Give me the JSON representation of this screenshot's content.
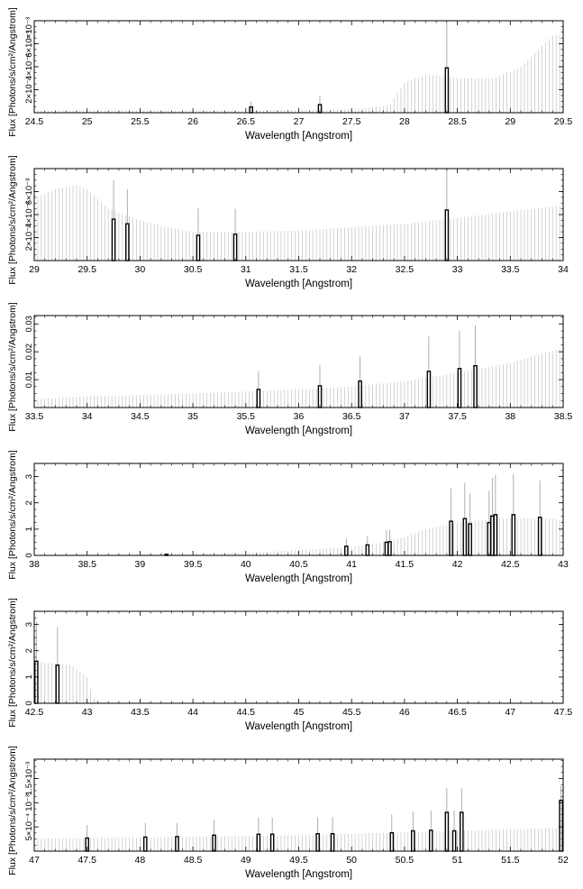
{
  "chart_data": [
    {
      "type": "bar",
      "xlabel": "Wavelength [Angstrom]",
      "ylabel": "Flux [Photons/s/cm²/Angstrom]",
      "xlim": [
        24.5,
        29.5
      ],
      "ylim": [
        0,
        0.0008
      ],
      "xticks": [
        24.5,
        25,
        25.5,
        26,
        26.5,
        27,
        27.5,
        28,
        28.5,
        29,
        29.5
      ],
      "xtick_labels": [
        "24.5",
        "25",
        "25.5",
        "26",
        "26.5",
        "27",
        "27.5",
        "28",
        "28.5",
        "29",
        "29.5"
      ],
      "yticks": [
        0.0002,
        0.0004,
        0.0006
      ],
      "ytick_labels": [
        "2×10⁻⁴",
        "4×10⁻⁴",
        "6×10⁻⁴"
      ],
      "y_exponent_label": "×10⁻³",
      "envelope": [
        [
          24.5,
          2e-05
        ],
        [
          25.5,
          2e-05
        ],
        [
          26.5,
          2e-05
        ],
        [
          27.5,
          3e-05
        ],
        [
          27.85,
          6e-05
        ],
        [
          28.0,
          0.00026
        ],
        [
          28.2,
          0.00033
        ],
        [
          28.35,
          0.00032
        ],
        [
          28.5,
          0.0003
        ],
        [
          28.85,
          0.0003
        ],
        [
          29.1,
          0.0004
        ],
        [
          29.4,
          0.00067
        ],
        [
          29.5,
          0.00068
        ]
      ],
      "bars": [
        {
          "x": 26.55,
          "value": 5e-05,
          "err": 5e-05
        },
        {
          "x": 27.2,
          "value": 7e-05,
          "err": 8e-05
        },
        {
          "x": 28.4,
          "value": 0.00039,
          "err": 0.00039
        }
      ]
    },
    {
      "type": "bar",
      "xlabel": "Wavelength [Angstrom]",
      "ylabel": "Flux [Photons/s/cm²/Angstrom]",
      "xlim": [
        29,
        34
      ],
      "ylim": [
        0,
        0.008
      ],
      "xticks": [
        29,
        29.5,
        30,
        30.5,
        31,
        31.5,
        32,
        32.5,
        33,
        33.5,
        34
      ],
      "xtick_labels": [
        "29",
        "29.5",
        "30",
        "30.5",
        "31",
        "31.5",
        "32",
        "32.5",
        "33",
        "33.5",
        "34"
      ],
      "yticks": [
        0.002,
        0.004,
        0.006
      ],
      "ytick_labels": [
        "2×10⁻³",
        "4×10⁻³",
        "6×10⁻³"
      ],
      "y_exponent_label": "",
      "envelope": [
        [
          29.0,
          0.0054
        ],
        [
          29.2,
          0.0062
        ],
        [
          29.4,
          0.0066
        ],
        [
          29.5,
          0.0062
        ],
        [
          29.7,
          0.0045
        ],
        [
          30.0,
          0.0035
        ],
        [
          30.3,
          0.0028
        ],
        [
          30.5,
          0.0025
        ],
        [
          31.0,
          0.0025
        ],
        [
          31.5,
          0.0026
        ],
        [
          32.0,
          0.0029
        ],
        [
          32.5,
          0.0032
        ],
        [
          33.0,
          0.0037
        ],
        [
          33.5,
          0.0043
        ],
        [
          34.0,
          0.0048
        ]
      ],
      "bars": [
        {
          "x": 29.75,
          "value": 0.0036,
          "err": 0.0034
        },
        {
          "x": 29.88,
          "value": 0.0032,
          "err": 0.003
        },
        {
          "x": 30.55,
          "value": 0.0022,
          "err": 0.0024
        },
        {
          "x": 30.9,
          "value": 0.0023,
          "err": 0.0022
        },
        {
          "x": 32.9,
          "value": 0.0044,
          "err": 0.0041
        }
      ]
    },
    {
      "type": "bar",
      "xlabel": "Wavelength [Angstrom]",
      "ylabel": "Flux [Photons/s/cm²/Angstrom]",
      "xlim": [
        33.5,
        38.5
      ],
      "ylim": [
        0,
        0.033
      ],
      "xticks": [
        33.5,
        34,
        34.5,
        35,
        35.5,
        36,
        36.5,
        37,
        37.5,
        38,
        38.5
      ],
      "xtick_labels": [
        "33.5",
        "34",
        "34.5",
        "35",
        "35.5",
        "36",
        "36.5",
        "37",
        "37.5",
        "38",
        "38.5"
      ],
      "yticks": [
        0.01,
        0.02,
        0.03
      ],
      "ytick_labels": [
        "0.01",
        "0.02",
        "0.03"
      ],
      "y_exponent_label": "",
      "envelope": [
        [
          33.5,
          0.003
        ],
        [
          34.0,
          0.004
        ],
        [
          34.5,
          0.0045
        ],
        [
          35.0,
          0.005
        ],
        [
          35.5,
          0.0058
        ],
        [
          36.0,
          0.0065
        ],
        [
          36.5,
          0.0075
        ],
        [
          37.0,
          0.0095
        ],
        [
          37.5,
          0.0125
        ],
        [
          38.0,
          0.016
        ],
        [
          38.5,
          0.0215
        ]
      ],
      "bars": [
        {
          "x": 35.62,
          "value": 0.0065,
          "err": 0.0065
        },
        {
          "x": 36.2,
          "value": 0.0078,
          "err": 0.0075
        },
        {
          "x": 36.58,
          "value": 0.0095,
          "err": 0.009
        },
        {
          "x": 37.23,
          "value": 0.013,
          "err": 0.0125
        },
        {
          "x": 37.52,
          "value": 0.014,
          "err": 0.0135
        },
        {
          "x": 37.67,
          "value": 0.015,
          "err": 0.0145
        }
      ]
    },
    {
      "type": "bar",
      "xlabel": "Wavelength [Angstrom]",
      "ylabel": "Flux [Photons/s/cm²/Angstrom]",
      "xlim": [
        38,
        43
      ],
      "ylim": [
        0,
        3.5
      ],
      "xticks": [
        38,
        38.5,
        39,
        39.5,
        40,
        40.5,
        41,
        41.5,
        42,
        42.5,
        43
      ],
      "xtick_labels": [
        "38",
        "38.5",
        "39",
        "39.5",
        "40",
        "40.5",
        "41",
        "41.5",
        "42",
        "42.5",
        "43"
      ],
      "yticks": [
        0,
        1,
        2,
        3
      ],
      "ytick_labels": [
        "0",
        "1",
        "2",
        "3"
      ],
      "y_exponent_label": "",
      "envelope": [
        [
          38.0,
          0.03
        ],
        [
          39.0,
          0.04
        ],
        [
          40.0,
          0.1
        ],
        [
          40.5,
          0.2
        ],
        [
          41.0,
          0.32
        ],
        [
          41.3,
          0.5
        ],
        [
          41.5,
          0.7
        ],
        [
          41.7,
          1.0
        ],
        [
          42.0,
          1.25
        ],
        [
          42.3,
          1.38
        ],
        [
          42.6,
          1.42
        ],
        [
          42.9,
          1.4
        ],
        [
          43.0,
          1.3
        ]
      ],
      "bars": [
        {
          "x": 39.25,
          "value": 0.04,
          "err": 0.03
        },
        {
          "x": 40.95,
          "value": 0.35,
          "err": 0.3
        },
        {
          "x": 41.15,
          "value": 0.4,
          "err": 0.35
        },
        {
          "x": 41.33,
          "value": 0.5,
          "err": 0.45
        },
        {
          "x": 41.36,
          "value": 0.52,
          "err": 0.45
        },
        {
          "x": 41.94,
          "value": 1.3,
          "err": 1.25
        },
        {
          "x": 42.07,
          "value": 1.4,
          "err": 1.35
        },
        {
          "x": 42.12,
          "value": 1.2,
          "err": 1.15
        },
        {
          "x": 42.3,
          "value": 1.25,
          "err": 1.2
        },
        {
          "x": 42.33,
          "value": 1.5,
          "err": 1.45
        },
        {
          "x": 42.36,
          "value": 1.55,
          "err": 1.5
        },
        {
          "x": 42.53,
          "value": 1.55,
          "err": 1.55
        },
        {
          "x": 42.78,
          "value": 1.45,
          "err": 1.4
        }
      ]
    },
    {
      "type": "bar",
      "xlabel": "Wavelength [Angstrom]",
      "ylabel": "Flux [Photons/s/cm²/Angstrom]",
      "xlim": [
        42.5,
        47.5
      ],
      "ylim": [
        0,
        3.5
      ],
      "xticks": [
        42.5,
        43,
        43.5,
        44,
        44.5,
        45,
        45.5,
        46,
        46.5,
        47,
        47.5
      ],
      "xtick_labels": [
        "42.5",
        "43",
        "43.5",
        "44",
        "44.5",
        "45",
        "45.5",
        "46",
        "46.5",
        "47",
        "47.5"
      ],
      "yticks": [
        0,
        1,
        2,
        3
      ],
      "ytick_labels": [
        "0",
        "1",
        "2",
        "3"
      ],
      "y_exponent_label": "",
      "envelope": [
        [
          42.5,
          1.6
        ],
        [
          42.7,
          1.5
        ],
        [
          42.85,
          1.45
        ],
        [
          43.0,
          1.0
        ],
        [
          43.05,
          0.3
        ],
        [
          43.1,
          0.05
        ],
        [
          43.3,
          0.02
        ],
        [
          47.5,
          0.02
        ]
      ],
      "bars": [
        {
          "x": 42.52,
          "value": 1.6,
          "err": 1.5
        },
        {
          "x": 42.72,
          "value": 1.45,
          "err": 1.45
        }
      ]
    },
    {
      "type": "bar",
      "xlabel": "Wavelength [Angstrom]",
      "ylabel": "Flux [Photons/s/cm²/Angstrom]",
      "xlim": [
        47,
        52
      ],
      "ylim": [
        0,
        0.0019
      ],
      "xticks": [
        47,
        47.5,
        48,
        48.5,
        49,
        49.5,
        50,
        50.5,
        51,
        51.5,
        52
      ],
      "xtick_labels": [
        "47",
        "47.5",
        "48",
        "48.5",
        "49",
        "49.5",
        "50",
        "50.5",
        "51",
        "51.5",
        "52"
      ],
      "yticks": [
        0.0005,
        0.001,
        0.0015
      ],
      "ytick_labels": [
        "5×10⁻⁴",
        "10⁻³",
        "1.5×10⁻³"
      ],
      "y_exponent_label": "",
      "envelope": [
        [
          47.0,
          0.00026
        ],
        [
          47.5,
          0.00027
        ],
        [
          48.0,
          0.00028
        ],
        [
          48.5,
          0.0003
        ],
        [
          49.0,
          0.00031
        ],
        [
          49.5,
          0.00033
        ],
        [
          50.0,
          0.00036
        ],
        [
          50.5,
          0.00039
        ],
        [
          51.0,
          0.00042
        ],
        [
          51.5,
          0.00045
        ],
        [
          52.0,
          0.00048
        ]
      ],
      "bars": [
        {
          "x": 47.5,
          "value": 0.00027,
          "err": 0.00027
        },
        {
          "x": 48.05,
          "value": 0.00029,
          "err": 0.00029
        },
        {
          "x": 48.35,
          "value": 0.0003,
          "err": 0.00028
        },
        {
          "x": 48.7,
          "value": 0.00033,
          "err": 0.00031
        },
        {
          "x": 49.12,
          "value": 0.00035,
          "err": 0.00034
        },
        {
          "x": 49.25,
          "value": 0.00035,
          "err": 0.00034
        },
        {
          "x": 49.68,
          "value": 0.00036,
          "err": 0.00034
        },
        {
          "x": 49.82,
          "value": 0.00036,
          "err": 0.00034
        },
        {
          "x": 50.38,
          "value": 0.00038,
          "err": 0.00038
        },
        {
          "x": 50.58,
          "value": 0.00042,
          "err": 0.0004
        },
        {
          "x": 50.75,
          "value": 0.00043,
          "err": 0.00041
        },
        {
          "x": 50.9,
          "value": 0.0008,
          "err": 0.0005
        },
        {
          "x": 50.97,
          "value": 0.00042,
          "err": 0.00042
        },
        {
          "x": 51.04,
          "value": 0.0008,
          "err": 0.0005
        },
        {
          "x": 51.98,
          "value": 0.00105,
          "err": 0.0003
        }
      ]
    }
  ]
}
